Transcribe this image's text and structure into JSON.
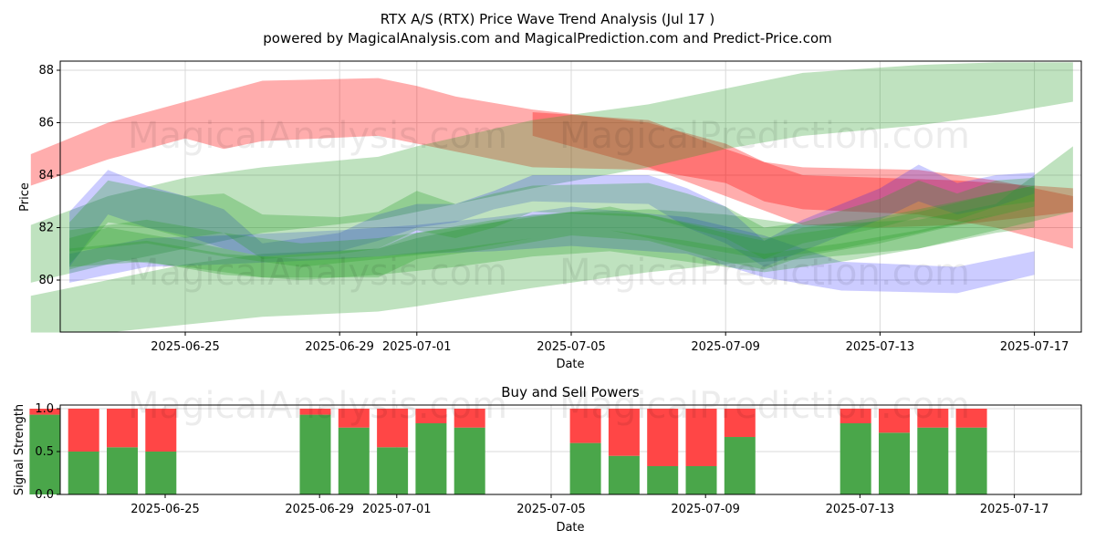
{
  "title_line1": "RTX A/S (RTX) Price Wave Trend Analysis (Jul 17 )",
  "title_line2": "powered by MagicalAnalysis.com and MagicalPrediction.com and Predict-Price.com",
  "watermarks": [
    "MagicalAnalysis.com",
    "MagicalPrediction.com"
  ],
  "colors": {
    "green": "#2ca02c",
    "red": "#ff0000",
    "blue": "#0000ff",
    "buy": "#4aa64a",
    "sell": "#ff4646",
    "grid": "#d9d9d9"
  },
  "chart_data": [
    {
      "type": "area",
      "title": "",
      "xlabel": "Date",
      "ylabel": "Price",
      "xlim": [
        "2025-06-21",
        "2025-07-18"
      ],
      "ylim": [
        78.0,
        88.3
      ],
      "yticks": [
        80,
        82,
        84,
        86,
        88
      ],
      "xticks": [
        "2025-06-25",
        "2025-06-29",
        "2025-07-01",
        "2025-07-05",
        "2025-07-09",
        "2025-07-13",
        "2025-07-17"
      ],
      "bands": [
        {
          "color": "red",
          "dates": [
            "2025-06-21",
            "2025-06-23",
            "2025-06-25",
            "2025-06-26",
            "2025-06-27",
            "2025-06-30",
            "2025-07-01",
            "2025-07-02",
            "2025-07-04",
            "2025-07-07",
            "2025-07-09",
            "2025-07-10",
            "2025-07-11",
            "2025-07-14",
            "2025-07-16",
            "2025-07-18"
          ],
          "upper": [
            84.8,
            86.0,
            86.8,
            87.2,
            87.6,
            87.7,
            87.4,
            87.0,
            86.5,
            86.0,
            85.2,
            84.5,
            84.3,
            84.2,
            83.8,
            83.2
          ],
          "lower": [
            83.6,
            84.6,
            85.4,
            85.0,
            85.3,
            85.5,
            85.2,
            84.9,
            84.3,
            84.2,
            83.7,
            83.0,
            82.7,
            82.5,
            82.0,
            81.2
          ]
        },
        {
          "color": "red",
          "dates": [
            "2025-07-04",
            "2025-07-07",
            "2025-07-09",
            "2025-07-11",
            "2025-07-13",
            "2025-07-15",
            "2025-07-18"
          ],
          "upper": [
            86.4,
            86.1,
            85.0,
            84.0,
            83.9,
            83.8,
            83.5
          ],
          "lower": [
            85.5,
            84.3,
            83.2,
            82.1,
            82.0,
            82.1,
            82.6
          ]
        },
        {
          "color": "green",
          "dates": [
            "2025-06-21",
            "2025-06-23",
            "2025-06-25",
            "2025-06-27",
            "2025-06-30",
            "2025-07-01",
            "2025-07-04",
            "2025-07-07",
            "2025-07-09",
            "2025-07-11",
            "2025-07-14",
            "2025-07-16",
            "2025-07-18"
          ],
          "upper": [
            82.1,
            83.2,
            83.9,
            84.3,
            84.7,
            85.1,
            86.1,
            86.7,
            87.3,
            87.9,
            88.2,
            88.3,
            88.3
          ],
          "lower": [
            79.9,
            80.6,
            81.2,
            81.8,
            82.3,
            82.6,
            83.5,
            84.3,
            85.0,
            85.5,
            85.9,
            86.3,
            86.8
          ]
        },
        {
          "color": "green",
          "dates": [
            "2025-06-21",
            "2025-06-23",
            "2025-06-25",
            "2025-06-27",
            "2025-06-30",
            "2025-07-01",
            "2025-07-04",
            "2025-07-07",
            "2025-07-09",
            "2025-07-11",
            "2025-07-14",
            "2025-07-16",
            "2025-07-18"
          ],
          "upper": [
            79.4,
            80.0,
            80.6,
            81.0,
            81.2,
            81.6,
            82.5,
            82.7,
            82.5,
            82.1,
            82.3,
            82.9,
            85.1
          ],
          "lower": [
            78.0,
            78.0,
            78.3,
            78.6,
            78.8,
            79.0,
            79.7,
            80.3,
            80.6,
            80.8,
            81.2,
            81.9,
            82.6
          ]
        },
        {
          "color": "blue",
          "dates": [
            "2025-06-22",
            "2025-06-24",
            "2025-06-26",
            "2025-06-29",
            "2025-07-01",
            "2025-07-03",
            "2025-07-05",
            "2025-07-08",
            "2025-07-10",
            "2025-07-12",
            "2025-07-15",
            "2025-07-17"
          ],
          "upper": [
            81.0,
            81.6,
            81.7,
            81.9,
            82.1,
            82.4,
            82.8,
            82.4,
            81.7,
            80.7,
            80.5,
            81.1
          ],
          "lower": [
            79.9,
            80.5,
            80.6,
            80.8,
            81.0,
            81.1,
            81.3,
            81.0,
            80.1,
            79.6,
            79.5,
            80.2
          ]
        },
        {
          "color": "blue",
          "dates": [
            "2025-06-22",
            "2025-06-23",
            "2025-06-24",
            "2025-06-25",
            "2025-06-26",
            "2025-06-27",
            "2025-06-29",
            "2025-06-30",
            "2025-07-01",
            "2025-07-02",
            "2025-07-03",
            "2025-07-04",
            "2025-07-07",
            "2025-07-08",
            "2025-07-09",
            "2025-07-10",
            "2025-07-11",
            "2025-07-13",
            "2025-07-14",
            "2025-07-15",
            "2025-07-16",
            "2025-07-17"
          ],
          "upper": [
            82.6,
            84.2,
            83.6,
            83.2,
            82.7,
            81.4,
            81.8,
            82.5,
            82.9,
            82.9,
            83.4,
            84.0,
            84.0,
            83.5,
            82.8,
            81.5,
            82.3,
            83.5,
            84.4,
            83.7,
            84.0,
            84.1
          ],
          "lower": [
            80.5,
            82.5,
            82.0,
            81.7,
            81.2,
            80.9,
            81.1,
            81.5,
            82.0,
            82.2,
            82.7,
            83.0,
            82.9,
            82.0,
            81.4,
            80.5,
            81.1,
            82.3,
            83.0,
            82.5,
            82.8,
            83.3
          ]
        },
        {
          "color": "green",
          "dates": [
            "2025-06-22",
            "2025-06-23",
            "2025-06-24",
            "2025-06-25",
            "2025-06-26",
            "2025-06-27",
            "2025-06-29",
            "2025-06-30",
            "2025-07-01",
            "2025-07-02",
            "2025-07-03",
            "2025-07-04",
            "2025-07-07",
            "2025-07-08",
            "2025-07-09",
            "2025-07-10",
            "2025-07-11",
            "2025-07-13",
            "2025-07-14",
            "2025-07-15",
            "2025-07-16",
            "2025-07-17"
          ],
          "upper": [
            82.2,
            83.8,
            83.5,
            83.2,
            83.3,
            82.5,
            82.4,
            82.6,
            83.4,
            82.9,
            83.3,
            83.6,
            83.7,
            83.3,
            82.8,
            82.0,
            82.2,
            83.1,
            83.8,
            83.3,
            83.8,
            83.9
          ],
          "lower": [
            80.6,
            82.2,
            82.0,
            81.6,
            81.8,
            80.8,
            81.0,
            81.2,
            81.9,
            81.6,
            82.0,
            82.6,
            82.4,
            82.0,
            81.6,
            80.8,
            81.4,
            82.0,
            82.4,
            82.3,
            82.8,
            83.0
          ]
        },
        {
          "color": "green",
          "dates": [
            "2025-06-22",
            "2025-06-23",
            "2025-06-25",
            "2025-06-27",
            "2025-06-30",
            "2025-07-01",
            "2025-07-03",
            "2025-07-05",
            "2025-07-07",
            "2025-07-09",
            "2025-07-10",
            "2025-07-11",
            "2025-07-13",
            "2025-07-15",
            "2025-07-17"
          ],
          "upper": [
            81.6,
            82.0,
            81.5,
            80.9,
            81.2,
            81.8,
            82.3,
            82.6,
            82.5,
            81.8,
            81.5,
            82.0,
            82.4,
            83.0,
            83.6
          ],
          "lower": [
            80.4,
            80.8,
            80.5,
            80.1,
            80.1,
            80.8,
            81.2,
            81.7,
            81.5,
            80.7,
            80.4,
            80.9,
            81.4,
            82.1,
            82.8
          ]
        },
        {
          "color": "green",
          "dates": [
            "2025-06-22",
            "2025-06-24",
            "2025-06-26",
            "2025-06-28",
            "2025-06-30",
            "2025-07-02",
            "2025-07-04",
            "2025-07-06",
            "2025-07-08",
            "2025-07-10",
            "2025-07-12",
            "2025-07-14",
            "2025-07-16",
            "2025-07-17"
          ],
          "upper": [
            81.2,
            81.5,
            81.0,
            80.8,
            80.9,
            81.2,
            81.6,
            81.9,
            81.5,
            81.0,
            81.4,
            81.9,
            82.5,
            82.8
          ],
          "lower": [
            80.5,
            80.7,
            80.2,
            80.0,
            80.2,
            80.5,
            80.9,
            81.1,
            80.7,
            80.3,
            80.7,
            81.2,
            81.8,
            82.0
          ]
        },
        {
          "color": "green",
          "dates": [
            "2025-06-22",
            "2025-06-24",
            "2025-06-26",
            "2025-06-28",
            "2025-06-30",
            "2025-07-02",
            "2025-07-04",
            "2025-07-06",
            "2025-07-08",
            "2025-07-10",
            "2025-07-12",
            "2025-07-14",
            "2025-07-16",
            "2025-07-17"
          ],
          "upper": [
            81.9,
            82.3,
            81.8,
            81.4,
            81.6,
            82.0,
            82.4,
            82.8,
            82.2,
            81.6,
            82.0,
            82.6,
            83.3,
            83.6
          ],
          "lower": [
            81.1,
            81.4,
            80.9,
            80.5,
            80.8,
            81.1,
            81.6,
            81.9,
            81.3,
            80.8,
            81.2,
            81.8,
            82.5,
            82.8
          ]
        }
      ]
    },
    {
      "type": "bar",
      "stacked": true,
      "title": "Buy and Sell Powers",
      "xlabel": "Date",
      "ylabel": "Signal Strength",
      "ylim": [
        0.0,
        1.05
      ],
      "yticks": [
        "0.0",
        "0.5",
        "1.0"
      ],
      "xticks": [
        "2025-06-25",
        "2025-06-29",
        "2025-07-01",
        "2025-07-05",
        "2025-07-09",
        "2025-07-13",
        "2025-07-17"
      ],
      "categories": [
        "2025-06-23",
        "2025-06-24",
        "2025-06-25",
        "2025-06-26",
        "2025-06-30",
        "2025-07-01",
        "2025-07-02",
        "2025-07-03",
        "2025-07-04",
        "2025-07-07",
        "2025-07-08",
        "2025-07-09",
        "2025-07-10",
        "2025-07-11",
        "2025-07-14",
        "2025-07-15",
        "2025-07-16",
        "2025-07-17"
      ],
      "series": [
        {
          "name": "Buy",
          "color": "buy",
          "values": [
            0.93,
            0.5,
            0.55,
            0.5,
            0.93,
            0.78,
            0.55,
            0.83,
            0.78,
            0.6,
            0.45,
            0.33,
            0.33,
            0.67,
            0.83,
            0.72,
            0.78,
            0.78
          ]
        },
        {
          "name": "Sell",
          "color": "sell",
          "values": [
            0.07,
            0.5,
            0.45,
            0.5,
            0.07,
            0.22,
            0.45,
            0.17,
            0.22,
            0.4,
            0.55,
            0.67,
            0.67,
            0.33,
            0.17,
            0.28,
            0.22,
            0.22
          ]
        }
      ]
    }
  ]
}
